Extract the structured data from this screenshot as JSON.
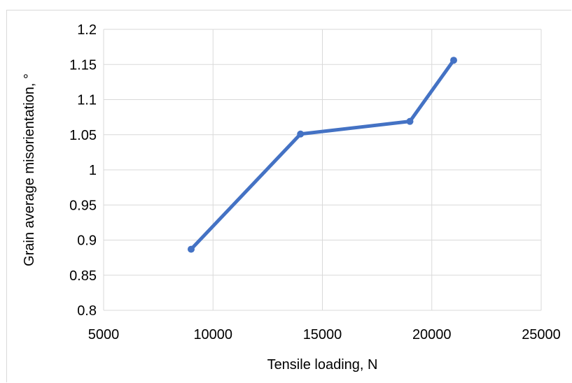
{
  "chart_data": {
    "type": "line",
    "title": "",
    "xlabel": "Tensile loading, N",
    "ylabel": "Grain average misorientation, °",
    "x": [
      9000,
      14000,
      19000,
      21000
    ],
    "series": [
      {
        "values": [
          0.887,
          1.051,
          1.069,
          1.156
        ],
        "color": "#4472c4"
      }
    ],
    "xlim": [
      5000,
      25000
    ],
    "ylim": [
      0.8,
      1.2
    ],
    "xticks": [
      5000,
      10000,
      15000,
      20000,
      25000
    ],
    "yticks": [
      0.8,
      0.85,
      0.9,
      0.95,
      1,
      1.05,
      1.1,
      1.15,
      1.2
    ],
    "xtick_labels": [
      "5000",
      "10000",
      "15000",
      "20000",
      "25000"
    ],
    "ytick_labels": [
      "0.8",
      "0.85",
      "0.9",
      "0.95",
      "1",
      "1.05",
      "1.1",
      "1.15",
      "1.2"
    ],
    "grid": true,
    "markers": true,
    "legend": "none"
  }
}
